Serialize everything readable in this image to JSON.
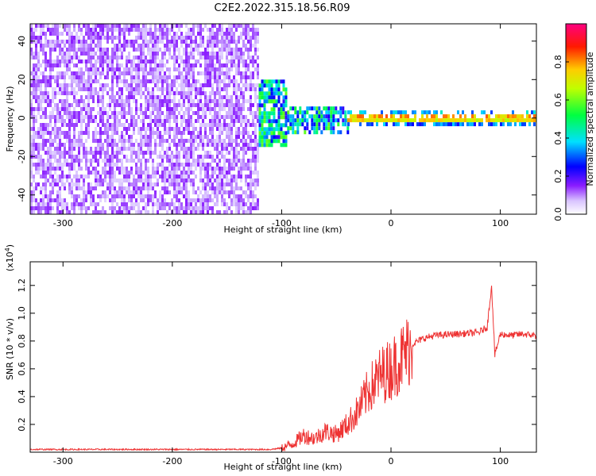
{
  "title": "C2E2.2022.315.18.56.R09",
  "chart_data": [
    {
      "type": "heatmap",
      "title": "C2E2.2022.315.18.56.R09",
      "xlabel": "Height of straight line (km)",
      "ylabel": "Frequency (Hz)",
      "xlim": [
        -330,
        133
      ],
      "ylim": [
        -50,
        49
      ],
      "x_ticks": [
        -300,
        -200,
        -100,
        0,
        100
      ],
      "y_ticks": [
        -40,
        -20,
        0,
        20,
        40
      ],
      "colorbar": {
        "label": "Normalized spectral amplitude",
        "range": [
          0.0,
          1.0
        ],
        "ticks": [
          0.0,
          0.2,
          0.4,
          0.6,
          0.8
        ],
        "colormap": [
          "#ffffff",
          "#d9c4ff",
          "#7a00ff",
          "#0000ff",
          "#00ffff",
          "#00ff00",
          "#ffff00",
          "#ff0000",
          "#ff0080"
        ]
      },
      "regions": [
        {
          "x_range": [
            -330,
            -121
          ],
          "freq_range": [
            -50,
            49
          ],
          "amplitude_range": [
            0.05,
            0.15
          ]
        },
        {
          "x_range": [
            -121,
            -95
          ],
          "freq_range": [
            -15,
            20
          ],
          "amplitude_range": [
            0.2,
            0.6
          ]
        },
        {
          "x_range": [
            -95,
            -40
          ],
          "freq_range": [
            -8,
            6
          ],
          "amplitude_range": [
            0.2,
            0.6
          ]
        },
        {
          "x_range": [
            -40,
            133
          ],
          "freq_range": [
            -3,
            4
          ],
          "amplitude_range": [
            0.4,
            0.95
          ]
        }
      ],
      "grid": false
    },
    {
      "type": "line",
      "xlabel": "Height of straight line (km)",
      "ylabel": "SNR (10 * v/v)",
      "y_multiplier": "x10^4",
      "xlim": [
        -330,
        133
      ],
      "ylim": [
        0,
        1.37
      ],
      "x_ticks": [
        -300,
        -200,
        -100,
        0,
        100
      ],
      "y_ticks": [
        0.2,
        0.4,
        0.6,
        0.8,
        1.0,
        1.2
      ],
      "series": [
        {
          "color": "#ee3333",
          "x": [
            -330,
            -250,
            -150,
            -110,
            -100,
            -90,
            -80,
            -70,
            -60,
            -50,
            -40,
            -30,
            -20,
            -10,
            0,
            10,
            20,
            30,
            40,
            60,
            80,
            88,
            92,
            95,
            100,
            110,
            120,
            133
          ],
          "y": [
            0.02,
            0.02,
            0.02,
            0.02,
            0.03,
            0.06,
            0.12,
            0.1,
            0.15,
            0.13,
            0.2,
            0.3,
            0.45,
            0.55,
            0.6,
            0.68,
            0.78,
            0.82,
            0.84,
            0.85,
            0.86,
            0.9,
            1.2,
            0.7,
            0.85,
            0.84,
            0.85,
            0.84
          ]
        }
      ],
      "annotations": [],
      "grid": false
    }
  ]
}
